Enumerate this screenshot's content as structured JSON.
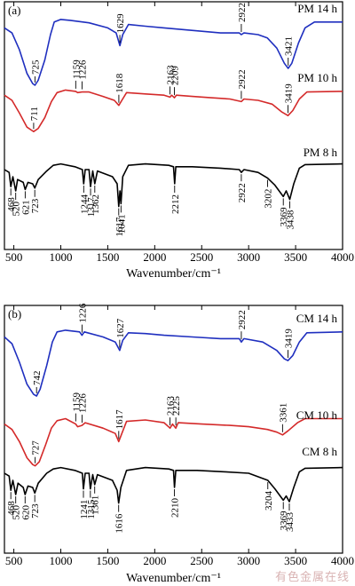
{
  "watermark": "有色金属在线",
  "colors": {
    "blue": "#1f2fbf",
    "red": "#d42a2a",
    "black": "#000000"
  },
  "chart_data": [
    {
      "type": "line",
      "panel_label": "(a)",
      "xlabel": "Wavenumber/cm⁻¹",
      "xlim": [
        400,
        4000
      ],
      "xticks": [
        500,
        1000,
        1500,
        2000,
        2500,
        3000,
        3500,
        4000
      ],
      "y_axis": "none",
      "series": [
        {
          "name": "PM 14 h",
          "color": "blue",
          "points": [
            [
              400,
              0.12
            ],
            [
              480,
              0.18
            ],
            [
              560,
              0.38
            ],
            [
              640,
              0.66
            ],
            [
              700,
              0.78
            ],
            [
              725,
              0.8
            ],
            [
              760,
              0.74
            ],
            [
              830,
              0.5
            ],
            [
              890,
              0.2
            ],
            [
              930,
              0.05
            ],
            [
              1000,
              0.02
            ],
            [
              1100,
              0.03
            ],
            [
              1300,
              0.06
            ],
            [
              1500,
              0.12
            ],
            [
              1590,
              0.18
            ],
            [
              1629,
              0.33
            ],
            [
              1660,
              0.2
            ],
            [
              1720,
              0.08
            ],
            [
              1900,
              0.1
            ],
            [
              2100,
              0.12
            ],
            [
              2300,
              0.14
            ],
            [
              2500,
              0.16
            ],
            [
              2700,
              0.18
            ],
            [
              2900,
              0.18
            ],
            [
              2922,
              0.2
            ],
            [
              2950,
              0.18
            ],
            [
              3100,
              0.2
            ],
            [
              3200,
              0.24
            ],
            [
              3300,
              0.36
            ],
            [
              3380,
              0.54
            ],
            [
              3421,
              0.6
            ],
            [
              3460,
              0.54
            ],
            [
              3530,
              0.3
            ],
            [
              3600,
              0.12
            ],
            [
              3700,
              0.05
            ],
            [
              4000,
              0.05
            ]
          ],
          "peak_labels": [
            725,
            1629,
            2922,
            3421
          ]
        },
        {
          "name": "PM 10 h",
          "color": "red",
          "points": [
            [
              400,
              0.1
            ],
            [
              480,
              0.18
            ],
            [
              560,
              0.38
            ],
            [
              640,
              0.6
            ],
            [
              700,
              0.66
            ],
            [
              711,
              0.67
            ],
            [
              760,
              0.62
            ],
            [
              830,
              0.45
            ],
            [
              900,
              0.2
            ],
            [
              960,
              0.06
            ],
            [
              1050,
              0.02
            ],
            [
              1159,
              0.04
            ],
            [
              1180,
              0.06
            ],
            [
              1226,
              0.05
            ],
            [
              1300,
              0.05
            ],
            [
              1450,
              0.12
            ],
            [
              1570,
              0.18
            ],
            [
              1618,
              0.26
            ],
            [
              1650,
              0.18
            ],
            [
              1700,
              0.06
            ],
            [
              1900,
              0.08
            ],
            [
              2100,
              0.1
            ],
            [
              2163,
              0.13
            ],
            [
              2180,
              0.1
            ],
            [
              2209,
              0.14
            ],
            [
              2230,
              0.1
            ],
            [
              2400,
              0.12
            ],
            [
              2600,
              0.14
            ],
            [
              2800,
              0.16
            ],
            [
              2922,
              0.2
            ],
            [
              2950,
              0.16
            ],
            [
              3100,
              0.18
            ],
            [
              3250,
              0.24
            ],
            [
              3350,
              0.36
            ],
            [
              3419,
              0.42
            ],
            [
              3470,
              0.34
            ],
            [
              3540,
              0.16
            ],
            [
              3620,
              0.05
            ],
            [
              4000,
              0.04
            ]
          ],
          "peak_labels": [
            711,
            1159,
            1226,
            1618,
            2163,
            2209,
            2922,
            3419
          ]
        },
        {
          "name": "PM 8 h",
          "color": "black",
          "points": [
            [
              400,
              0.1
            ],
            [
              450,
              0.14
            ],
            [
              468,
              0.34
            ],
            [
              490,
              0.2
            ],
            [
              520,
              0.4
            ],
            [
              540,
              0.24
            ],
            [
              600,
              0.28
            ],
            [
              621,
              0.38
            ],
            [
              650,
              0.28
            ],
            [
              700,
              0.3
            ],
            [
              723,
              0.36
            ],
            [
              760,
              0.24
            ],
            [
              850,
              0.12
            ],
            [
              920,
              0.04
            ],
            [
              1000,
              0.02
            ],
            [
              1150,
              0.06
            ],
            [
              1230,
              0.1
            ],
            [
              1244,
              0.3
            ],
            [
              1260,
              0.1
            ],
            [
              1300,
              0.1
            ],
            [
              1317,
              0.34
            ],
            [
              1340,
              0.12
            ],
            [
              1362,
              0.3
            ],
            [
              1390,
              0.12
            ],
            [
              1550,
              0.2
            ],
            [
              1600,
              0.3
            ],
            [
              1617,
              0.62
            ],
            [
              1630,
              0.4
            ],
            [
              1641,
              0.58
            ],
            [
              1660,
              0.2
            ],
            [
              1720,
              0.04
            ],
            [
              1900,
              0.02
            ],
            [
              2150,
              0.04
            ],
            [
              2200,
              0.06
            ],
            [
              2212,
              0.3
            ],
            [
              2225,
              0.06
            ],
            [
              2400,
              0.06
            ],
            [
              2700,
              0.08
            ],
            [
              2900,
              0.1
            ],
            [
              2922,
              0.14
            ],
            [
              2950,
              0.1
            ],
            [
              3100,
              0.14
            ],
            [
              3202,
              0.22
            ],
            [
              3280,
              0.32
            ],
            [
              3369,
              0.48
            ],
            [
              3400,
              0.4
            ],
            [
              3438,
              0.52
            ],
            [
              3480,
              0.3
            ],
            [
              3540,
              0.08
            ],
            [
              3600,
              0.03
            ],
            [
              4000,
              0.02
            ]
          ],
          "peak_labels": [
            468,
            520,
            621,
            723,
            1244,
            1317,
            1362,
            1617,
            1641,
            2212,
            2922,
            3202,
            3369,
            3438
          ]
        }
      ]
    },
    {
      "type": "line",
      "panel_label": "(b)",
      "xlabel": "Wavenumber/cm⁻¹",
      "xlim": [
        400,
        4000
      ],
      "xticks": [
        500,
        1000,
        1500,
        2000,
        2500,
        3000,
        3500,
        4000
      ],
      "y_axis": "none",
      "series": [
        {
          "name": "CM 14 h",
          "color": "blue",
          "points": [
            [
              400,
              0.1
            ],
            [
              480,
              0.18
            ],
            [
              560,
              0.4
            ],
            [
              640,
              0.66
            ],
            [
              710,
              0.78
            ],
            [
              742,
              0.8
            ],
            [
              780,
              0.72
            ],
            [
              850,
              0.44
            ],
            [
              910,
              0.16
            ],
            [
              960,
              0.04
            ],
            [
              1050,
              0.02
            ],
            [
              1200,
              0.04
            ],
            [
              1226,
              0.08
            ],
            [
              1250,
              0.04
            ],
            [
              1450,
              0.1
            ],
            [
              1580,
              0.16
            ],
            [
              1627,
              0.26
            ],
            [
              1660,
              0.14
            ],
            [
              1720,
              0.05
            ],
            [
              1900,
              0.06
            ],
            [
              2100,
              0.08
            ],
            [
              2400,
              0.1
            ],
            [
              2700,
              0.12
            ],
            [
              2900,
              0.12
            ],
            [
              2922,
              0.16
            ],
            [
              2950,
              0.12
            ],
            [
              3150,
              0.16
            ],
            [
              3300,
              0.26
            ],
            [
              3380,
              0.36
            ],
            [
              3419,
              0.38
            ],
            [
              3470,
              0.32
            ],
            [
              3540,
              0.16
            ],
            [
              3620,
              0.05
            ],
            [
              4000,
              0.04
            ]
          ],
          "peak_labels": [
            742,
            1226,
            1627,
            2922,
            3419
          ]
        },
        {
          "name": "CM 10 h",
          "color": "red",
          "points": [
            [
              400,
              0.1
            ],
            [
              480,
              0.18
            ],
            [
              560,
              0.36
            ],
            [
              640,
              0.6
            ],
            [
              700,
              0.7
            ],
            [
              727,
              0.72
            ],
            [
              770,
              0.66
            ],
            [
              840,
              0.4
            ],
            [
              900,
              0.16
            ],
            [
              960,
              0.05
            ],
            [
              1050,
              0.02
            ],
            [
              1159,
              0.1
            ],
            [
              1180,
              0.14
            ],
            [
              1226,
              0.12
            ],
            [
              1260,
              0.08
            ],
            [
              1450,
              0.16
            ],
            [
              1580,
              0.24
            ],
            [
              1617,
              0.36
            ],
            [
              1650,
              0.24
            ],
            [
              1700,
              0.06
            ],
            [
              1900,
              0.04
            ],
            [
              2100,
              0.08
            ],
            [
              2163,
              0.16
            ],
            [
              2190,
              0.1
            ],
            [
              2225,
              0.16
            ],
            [
              2250,
              0.08
            ],
            [
              2500,
              0.1
            ],
            [
              2800,
              0.12
            ],
            [
              3000,
              0.14
            ],
            [
              3200,
              0.18
            ],
            [
              3300,
              0.22
            ],
            [
              3361,
              0.26
            ],
            [
              3420,
              0.2
            ],
            [
              3520,
              0.08
            ],
            [
              3600,
              0.02
            ],
            [
              4000,
              0.02
            ]
          ],
          "peak_labels": [
            727,
            1159,
            1226,
            1617,
            2163,
            2225,
            3361
          ]
        },
        {
          "name": "CM 8 h",
          "color": "black",
          "points": [
            [
              400,
              0.1
            ],
            [
              450,
              0.14
            ],
            [
              468,
              0.34
            ],
            [
              490,
              0.2
            ],
            [
              520,
              0.4
            ],
            [
              545,
              0.24
            ],
            [
              600,
              0.3
            ],
            [
              620,
              0.4
            ],
            [
              650,
              0.28
            ],
            [
              700,
              0.3
            ],
            [
              723,
              0.38
            ],
            [
              760,
              0.24
            ],
            [
              850,
              0.1
            ],
            [
              920,
              0.04
            ],
            [
              1000,
              0.02
            ],
            [
              1150,
              0.06
            ],
            [
              1230,
              0.1
            ],
            [
              1241,
              0.32
            ],
            [
              1260,
              0.1
            ],
            [
              1300,
              0.1
            ],
            [
              1315,
              0.32
            ],
            [
              1340,
              0.12
            ],
            [
              1361,
              0.26
            ],
            [
              1390,
              0.12
            ],
            [
              1550,
              0.2
            ],
            [
              1600,
              0.34
            ],
            [
              1616,
              0.52
            ],
            [
              1640,
              0.3
            ],
            [
              1700,
              0.06
            ],
            [
              1900,
              0.02
            ],
            [
              2150,
              0.04
            ],
            [
              2200,
              0.06
            ],
            [
              2210,
              0.3
            ],
            [
              2225,
              0.06
            ],
            [
              2450,
              0.06
            ],
            [
              2750,
              0.08
            ],
            [
              3000,
              0.1
            ],
            [
              3204,
              0.2
            ],
            [
              3280,
              0.32
            ],
            [
              3369,
              0.48
            ],
            [
              3400,
              0.42
            ],
            [
              3433,
              0.5
            ],
            [
              3480,
              0.3
            ],
            [
              3540,
              0.08
            ],
            [
              3600,
              0.03
            ],
            [
              4000,
              0.02
            ]
          ],
          "peak_labels": [
            468,
            520,
            620,
            723,
            1241,
            1315,
            1361,
            1616,
            2210,
            3204,
            3369,
            3433
          ]
        }
      ]
    }
  ]
}
